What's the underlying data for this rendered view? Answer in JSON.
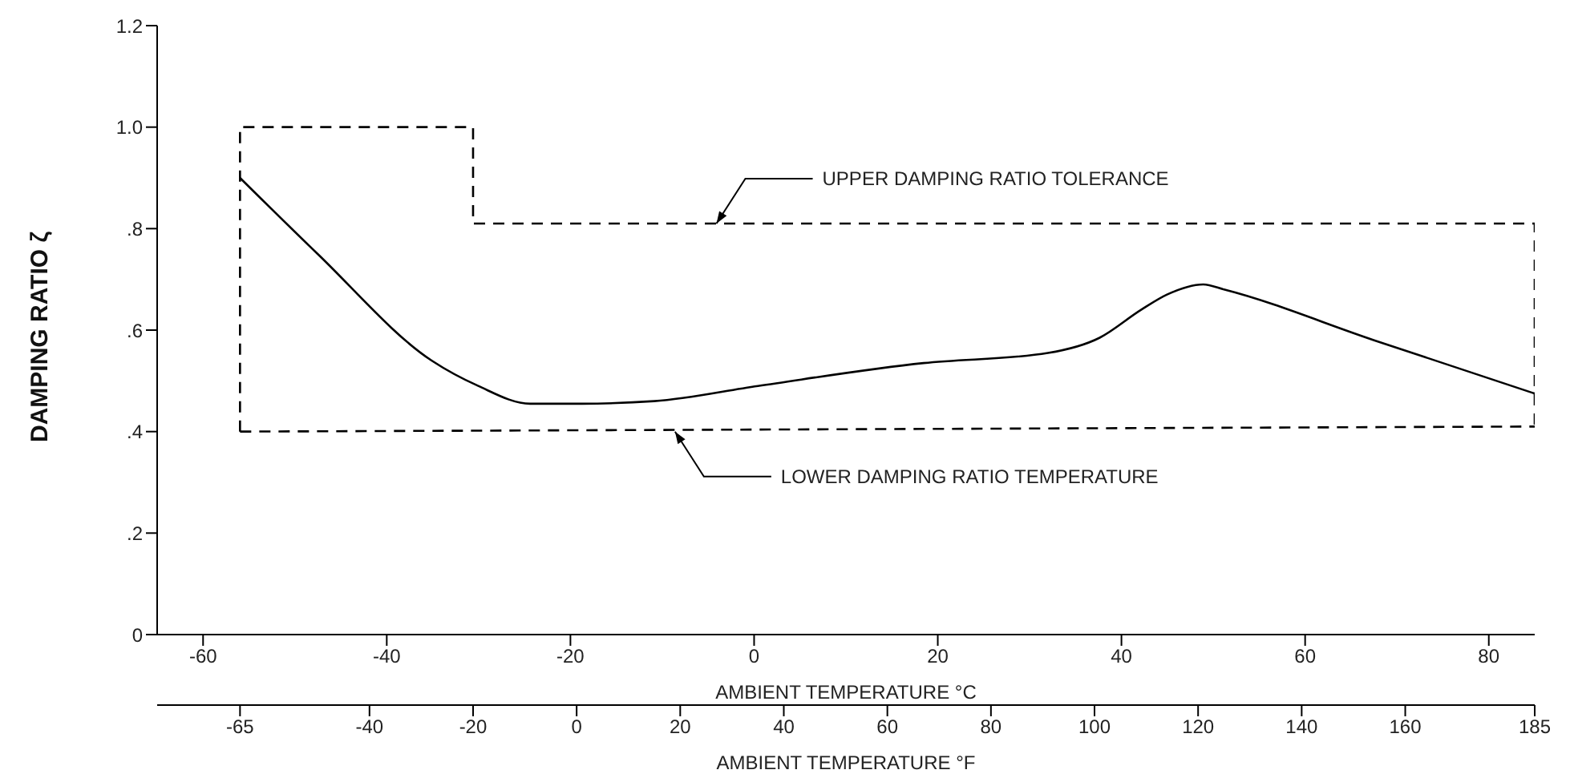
{
  "chart_data": {
    "type": "line",
    "xlabel": "AMBIENT TEMPERATURE °F",
    "x2label": "AMBIENT TEMPERATURE °C",
    "ylabel": "DAMPING RATIO ζ",
    "xlim": [
      -81,
      185
    ],
    "xticks": [
      -65,
      -40,
      -20,
      0,
      20,
      40,
      60,
      80,
      100,
      120,
      140,
      160,
      185
    ],
    "x2lim": [
      -65,
      85
    ],
    "x2ticks": [
      -60,
      -40,
      -20,
      0,
      20,
      40,
      60,
      80
    ],
    "ylim": [
      0,
      1.2
    ],
    "yticks": [
      0,
      {
        "value": 0.2,
        "label": ".2"
      },
      {
        "value": 0.4,
        "label": ".4"
      },
      {
        "value": 0.6,
        "label": ".6"
      },
      {
        "value": 0.8,
        "label": ".8"
      },
      {
        "value": 1,
        "label": "1.0"
      },
      {
        "value": 1.2,
        "label": "1.2"
      }
    ],
    "grid": false,
    "legend": false,
    "marker": "none",
    "series": [
      {
        "color": "#000000",
        "line_style": "solid",
        "x": [
          -65,
          -50,
          -28,
          -19,
          -9,
          1,
          15,
          35,
          67,
          91,
          101,
          109,
          114,
          121,
          125,
          154,
          185
        ],
        "values": [
          0.9,
          0.75,
          0.54,
          0.49,
          0.455,
          0.455,
          0.46,
          0.49,
          0.535,
          0.555,
          0.585,
          0.64,
          0.67,
          0.69,
          0.68,
          0.58,
          0.475
        ]
      },
      {
        "color": "#000000",
        "line_style": "dashed",
        "x": [
          -65,
          -65,
          -20,
          -20,
          185,
          185
        ],
        "values": [
          0.4,
          1.0,
          1.0,
          0.81,
          0.81,
          0.41
        ]
      },
      {
        "color": "#000000",
        "line_style": "dashed",
        "x": [
          -65,
          185
        ],
        "values": [
          0.4,
          0.41
        ]
      }
    ],
    "annotations": [
      {
        "text": "UPPER DAMPING RATIO TOLERANCE",
        "x": 27,
        "y": 0.81
      },
      {
        "text": "LOWER DAMPING RATIO TEMPERATURE",
        "x": 19,
        "y": 0.4
      }
    ]
  }
}
